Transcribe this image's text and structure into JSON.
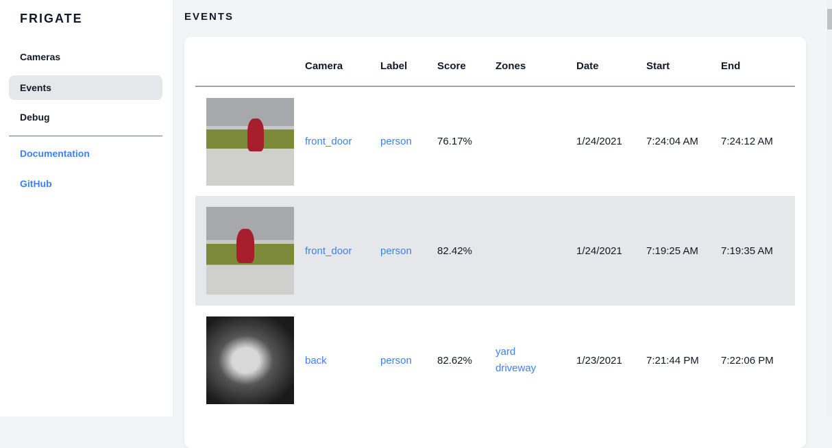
{
  "sidebar": {
    "brand": "FRIGATE",
    "items": [
      {
        "label": "Cameras",
        "active": false
      },
      {
        "label": "Events",
        "active": true
      },
      {
        "label": "Debug",
        "active": false
      }
    ],
    "links": [
      {
        "label": "Documentation"
      },
      {
        "label": "GitHub"
      }
    ]
  },
  "page": {
    "title": "EVENTS"
  },
  "table": {
    "headers": [
      "",
      "Camera",
      "Label",
      "Score",
      "Zones",
      "Date",
      "Start",
      "End"
    ],
    "rows": [
      {
        "camera": "front_door",
        "label": "person",
        "score": "76.17%",
        "zones": [
          "",
          ""
        ],
        "date": "1/24/2021",
        "start": "7:24:04 AM",
        "end": "7:24:12 AM"
      },
      {
        "camera": "front_door",
        "label": "person",
        "score": "82.42%",
        "zones": [
          "",
          ""
        ],
        "date": "1/24/2021",
        "start": "7:19:25 AM",
        "end": "7:19:35 AM"
      },
      {
        "camera": "back",
        "label": "person",
        "score": "82.62%",
        "zones": [
          "yard",
          "driveway"
        ],
        "date": "1/23/2021",
        "start": "7:21:44 PM",
        "end": "7:22:06 PM"
      }
    ]
  },
  "colors": {
    "accent": "#3b82f6",
    "active_bg": "#e5e7eb",
    "background": "#f3f4f6"
  }
}
